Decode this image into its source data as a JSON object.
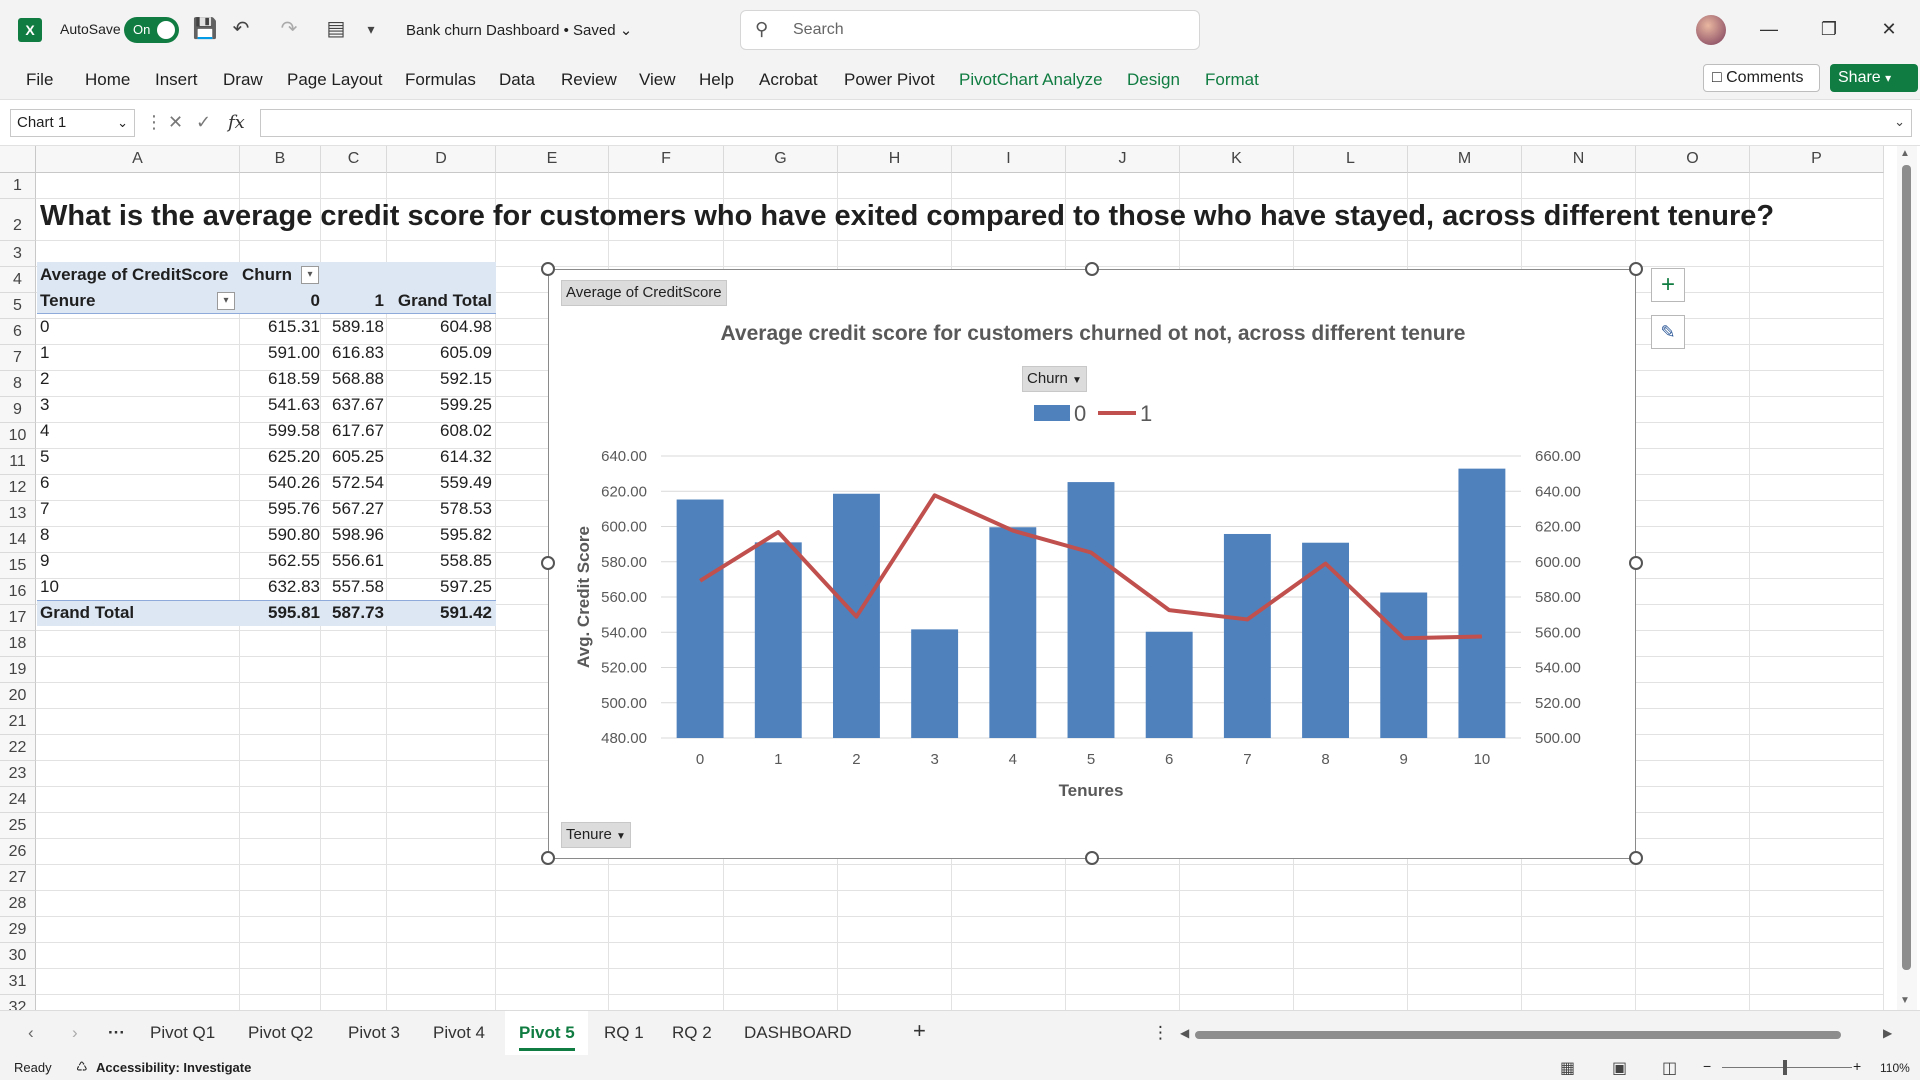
{
  "titlebar": {
    "autosave_label": "AutoSave",
    "autosave_state": "On",
    "doc_title": "Bank churn Dashboard • Saved",
    "search_placeholder": "Search"
  },
  "ribbon": {
    "tabs": [
      "File",
      "Home",
      "Insert",
      "Draw",
      "Page Layout",
      "Formulas",
      "Data",
      "Review",
      "View",
      "Help",
      "Acrobat",
      "Power Pivot",
      "PivotChart Analyze",
      "Design",
      "Format"
    ],
    "comments_label": "Comments",
    "share_label": "Share"
  },
  "formula_bar": {
    "name_box": "Chart 1",
    "fx_label": "fx"
  },
  "columns": [
    "A",
    "B",
    "C",
    "D",
    "E",
    "F",
    "G",
    "H",
    "I",
    "J",
    "K",
    "L",
    "M",
    "N",
    "O",
    "P"
  ],
  "rows": [
    "1",
    "2",
    "3",
    "4",
    "5",
    "6",
    "7",
    "8",
    "9",
    "10",
    "11",
    "12",
    "13",
    "14",
    "15",
    "16",
    "17",
    "18",
    "19",
    "20",
    "21",
    "22",
    "23",
    "24",
    "25",
    "26",
    "27",
    "28",
    "29",
    "30",
    "31",
    "32"
  ],
  "question": "What is the average credit score for customers who have exited compared to those who have stayed, across different tenure?",
  "pivot": {
    "value_label": "Average of CreditScore",
    "col_field": "Churn",
    "row_field": "Tenure",
    "col_headers": [
      "0",
      "1",
      "Grand Total"
    ],
    "rows": [
      {
        "label": "0",
        "v0": "615.31",
        "v1": "589.18",
        "gt": "604.98"
      },
      {
        "label": "1",
        "v0": "591.00",
        "v1": "616.83",
        "gt": "605.09"
      },
      {
        "label": "2",
        "v0": "618.59",
        "v1": "568.88",
        "gt": "592.15"
      },
      {
        "label": "3",
        "v0": "541.63",
        "v1": "637.67",
        "gt": "599.25"
      },
      {
        "label": "4",
        "v0": "599.58",
        "v1": "617.67",
        "gt": "608.02"
      },
      {
        "label": "5",
        "v0": "625.20",
        "v1": "605.25",
        "gt": "614.32"
      },
      {
        "label": "6",
        "v0": "540.26",
        "v1": "572.54",
        "gt": "559.49"
      },
      {
        "label": "7",
        "v0": "595.76",
        "v1": "567.27",
        "gt": "578.53"
      },
      {
        "label": "8",
        "v0": "590.80",
        "v1": "598.96",
        "gt": "595.82"
      },
      {
        "label": "9",
        "v0": "562.55",
        "v1": "556.61",
        "gt": "558.85"
      },
      {
        "label": "10",
        "v0": "632.83",
        "v1": "557.58",
        "gt": "597.25"
      }
    ],
    "total": {
      "label": "Grand Total",
      "v0": "595.81",
      "v1": "587.73",
      "gt": "591.42"
    }
  },
  "chart_buttons": {
    "value_field": "Average of CreditScore",
    "legend_field": "Churn",
    "axis_field": "Tenure"
  },
  "chart_data": {
    "type": "bar",
    "title": "Average credit score for customers churned ot not, across different tenure",
    "xlabel": "Tenures",
    "ylabel": "Avg. Credit Score",
    "categories": [
      "0",
      "1",
      "2",
      "3",
      "4",
      "5",
      "6",
      "7",
      "8",
      "9",
      "10"
    ],
    "series": [
      {
        "name": "0",
        "kind": "bar",
        "axis": "primary",
        "color": "#4f81bd",
        "values": [
          615.31,
          591.0,
          618.59,
          541.63,
          599.58,
          625.2,
          540.26,
          595.76,
          590.8,
          562.55,
          632.83
        ]
      },
      {
        "name": "1",
        "kind": "line",
        "axis": "secondary",
        "color": "#c0504d",
        "values": [
          589.18,
          616.83,
          568.88,
          637.67,
          617.67,
          605.25,
          572.54,
          567.27,
          598.96,
          556.61,
          557.58
        ]
      }
    ],
    "ylim": [
      480,
      640
    ],
    "y2lim": [
      500,
      660
    ],
    "yticks": [
      "480.00",
      "500.00",
      "520.00",
      "540.00",
      "560.00",
      "580.00",
      "600.00",
      "620.00",
      "640.00"
    ],
    "y2ticks": [
      "500.00",
      "520.00",
      "540.00",
      "560.00",
      "580.00",
      "600.00",
      "620.00",
      "640.00",
      "660.00"
    ],
    "grid": true,
    "legend": "top"
  },
  "sheets": [
    "Pivot Q1",
    "Pivot Q2",
    "Pivot 3",
    "Pivot 4",
    "Pivot 5",
    "RQ 1",
    "RQ 2",
    "DASHBOARD"
  ],
  "active_sheet": "Pivot 5",
  "status": {
    "ready": "Ready",
    "accessibility": "Accessibility: Investigate",
    "zoom": "110%"
  },
  "colors": {
    "excel_green": "#107c41",
    "pivot_band": "#dde7f3",
    "bar": "#4f81bd",
    "line": "#c0504d"
  }
}
